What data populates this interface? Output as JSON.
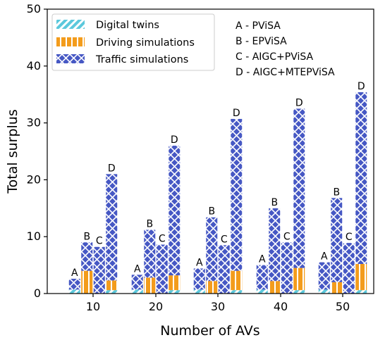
{
  "chart_data": {
    "type": "bar",
    "stacked": true,
    "xlabel": "Number of AVs",
    "ylabel": "Total surplus",
    "ylim": [
      0,
      50
    ],
    "yticks": [
      0,
      10,
      20,
      30,
      40,
      50
    ],
    "categories": [
      "10",
      "20",
      "30",
      "40",
      "50"
    ],
    "schemes": [
      "A",
      "B",
      "C",
      "D"
    ],
    "scheme_descriptions": [
      {
        "key": "A",
        "text": "A - PViSA"
      },
      {
        "key": "B",
        "text": "B - EPViSA"
      },
      {
        "key": "C",
        "text": "C - AIGC+PViSA"
      },
      {
        "key": "D",
        "text": "D - AIGC+MTEPViSA"
      }
    ],
    "series": [
      {
        "name": "Digital twins",
        "color": "#5bc8dc",
        "pattern": "diagonal-hatch",
        "values": [
          [
            0.7,
            0.0,
            0.0,
            0.6
          ],
          [
            0.7,
            0.0,
            0.0,
            0.6
          ],
          [
            0.7,
            0.0,
            0.0,
            0.6
          ],
          [
            0.7,
            0.0,
            0.0,
            0.6
          ],
          [
            0.7,
            0.0,
            0.0,
            0.6
          ]
        ]
      },
      {
        "name": "Driving simulations",
        "color": "#f39c1c",
        "pattern": "vertical-hatch",
        "values": [
          [
            0.0,
            4.0,
            0.0,
            1.7
          ],
          [
            0.0,
            2.8,
            0.0,
            2.6
          ],
          [
            0.0,
            2.2,
            0.0,
            3.4
          ],
          [
            0.0,
            2.2,
            0.0,
            3.9
          ],
          [
            0.0,
            2.0,
            0.0,
            4.6
          ]
        ]
      },
      {
        "name": "Traffic simulations",
        "color": "#4658c4",
        "pattern": "cross-hatch",
        "values": [
          [
            1.9,
            5.0,
            8.2,
            18.7
          ],
          [
            2.6,
            8.4,
            8.6,
            22.8
          ],
          [
            3.7,
            11.2,
            8.5,
            26.7
          ],
          [
            4.3,
            12.8,
            9.0,
            28.0
          ],
          [
            4.8,
            14.8,
            8.9,
            30.2
          ]
        ]
      }
    ],
    "legend_position": "top-left",
    "grid": false
  }
}
